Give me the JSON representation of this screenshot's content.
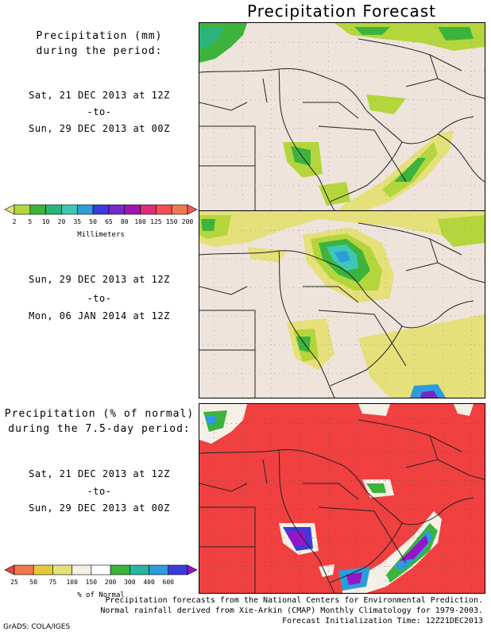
{
  "title": "Precipitation Forecast",
  "panel1": {
    "heading_line1": "Precipitation (mm)",
    "heading_line2": "during the period:",
    "start": "Sat, 21 DEC 2013 at 12Z",
    "to": "-to-",
    "end": "Sun, 29 DEC 2013 at 00Z"
  },
  "panel2": {
    "start": "Sun, 29 DEC 2013 at 12Z",
    "to": "-to-",
    "end": "Mon, 06 JAN 2014 at 12Z"
  },
  "panel3": {
    "heading_line1": "Precipitation (% of normal)",
    "heading_line2": "during the 7.5-day period:",
    "start": "Sat, 21 DEC 2013 at 12Z",
    "to": "-to-",
    "end": "Sun, 29 DEC 2013 at 00Z"
  },
  "colorbar_mm": {
    "unit_label": "Millimeters",
    "ticks": [
      "2",
      "5",
      "10",
      "20",
      "35",
      "50",
      "65",
      "80",
      "100",
      "125",
      "150",
      "200"
    ],
    "colors": [
      "#e6e07a",
      "#b4d63c",
      "#3cb43c",
      "#2ab47a",
      "#3cc8b4",
      "#2c9cdc",
      "#3c3cdc",
      "#7828c8",
      "#a014b4",
      "#dc2c7c",
      "#f05050",
      "#f07850",
      "#f05a5a"
    ]
  },
  "colorbar_pct": {
    "unit_label": "% of Normal",
    "ticks": [
      "25",
      "50",
      "75",
      "100",
      "150",
      "200",
      "300",
      "400",
      "600"
    ],
    "colors": [
      "#f04040",
      "#f07850",
      "#e6c83c",
      "#e6e07a",
      "#f5f0e6",
      "#ffffff",
      "#3cb43c",
      "#2ab4a0",
      "#2c9cdc",
      "#3c3cdc",
      "#9614c8"
    ]
  },
  "footer": {
    "line1": "Precipitation forecasts from the National Centers for Environmental Prediction.",
    "line2": "Normal rainfall derived from Xie-Arkin (CMAP) Monthly Climatology for 1979-2003.",
    "line3": "Forecast Initialization Time: 12Z21DEC2013"
  },
  "credit": "GrADS: COLA/IGES"
}
